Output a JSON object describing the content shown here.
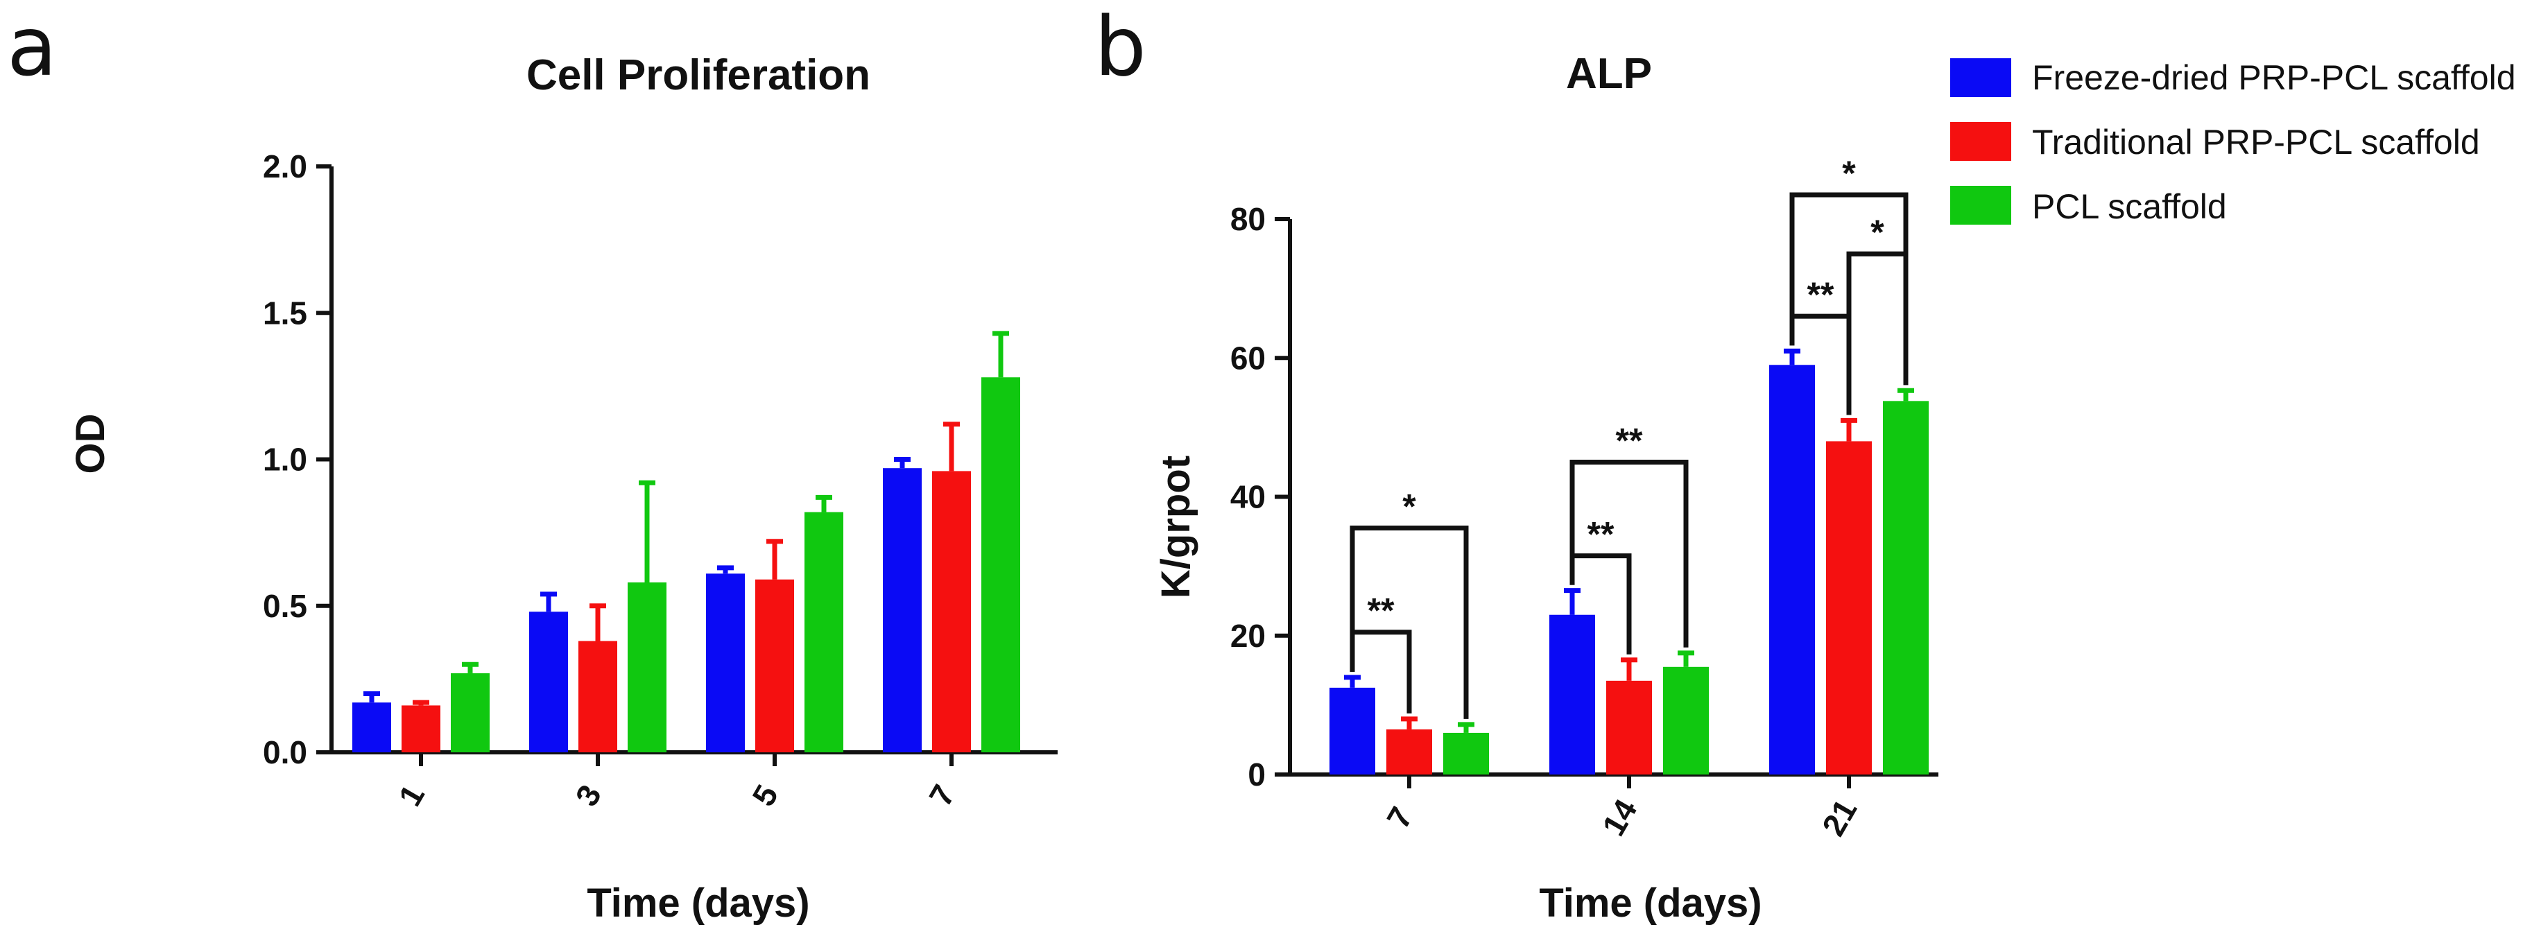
{
  "panels": {
    "a": "a",
    "b": "b"
  },
  "legend": [
    {
      "label": "Freeze-dried PRP-PCL scaffold",
      "color": "#0a0af5"
    },
    {
      "label": "Traditional PRP-PCL scaffold",
      "color": "#f51010"
    },
    {
      "label": "PCL scaffold",
      "color": "#10c810"
    }
  ],
  "chart_data": [
    {
      "id": "a",
      "type": "bar",
      "title": "Cell Proliferation",
      "xlabel": "Time (days)",
      "ylabel": "OD",
      "ylim": [
        0,
        2.0
      ],
      "yticks": [
        "0.0",
        "0.5",
        "1.0",
        "1.5",
        "2.0"
      ],
      "categories": [
        "1",
        "3",
        "5",
        "7"
      ],
      "series": [
        {
          "name": "Freeze-dried PRP-PCL scaffold",
          "values": [
            0.17,
            0.48,
            0.61,
            0.97
          ],
          "errors": [
            0.03,
            0.06,
            0.02,
            0.03
          ]
        },
        {
          "name": "Traditional PRP-PCL scaffold",
          "values": [
            0.16,
            0.38,
            0.59,
            0.96
          ],
          "errors": [
            0.01,
            0.12,
            0.13,
            0.16
          ]
        },
        {
          "name": "PCL scaffold",
          "values": [
            0.27,
            0.58,
            0.82,
            1.28
          ],
          "errors": [
            0.03,
            0.34,
            0.05,
            0.15
          ]
        }
      ],
      "significance": []
    },
    {
      "id": "b",
      "type": "bar",
      "title": "ALP",
      "xlabel": "Time (days)",
      "ylabel": "K/grpot",
      "ylim": [
        0,
        80
      ],
      "yticks": [
        "0",
        "20",
        "40",
        "60",
        "80"
      ],
      "categories": [
        "7",
        "14",
        "21"
      ],
      "series": [
        {
          "name": "Freeze-dried PRP-PCL scaffold",
          "values": [
            12.5,
            23,
            59
          ],
          "errors": [
            1.5,
            3.5,
            2
          ]
        },
        {
          "name": "Traditional PRP-PCL scaffold",
          "values": [
            6.5,
            13.5,
            48
          ],
          "errors": [
            1.5,
            3,
            3
          ]
        },
        {
          "name": "PCL scaffold",
          "values": [
            6,
            15.5,
            53.8
          ],
          "errors": [
            1.2,
            2,
            1.5
          ]
        }
      ],
      "significance": [
        {
          "category": 0,
          "from": 0,
          "to": 1,
          "y": 20.5,
          "label": "**"
        },
        {
          "category": 0,
          "from": 0,
          "to": 2,
          "y": 35.5,
          "label": "*"
        },
        {
          "category": 1,
          "from": 0,
          "to": 1,
          "y": 31.5,
          "label": "**"
        },
        {
          "category": 1,
          "from": 0,
          "to": 2,
          "y": 45,
          "label": "**"
        },
        {
          "category": 2,
          "from": 0,
          "to": 1,
          "y": 66,
          "label": "**"
        },
        {
          "category": 2,
          "from": 1,
          "to": 2,
          "y": 75,
          "label": "*"
        },
        {
          "category": 2,
          "from": 0,
          "to": 2,
          "y": 83.5,
          "label": "*"
        }
      ]
    }
  ]
}
